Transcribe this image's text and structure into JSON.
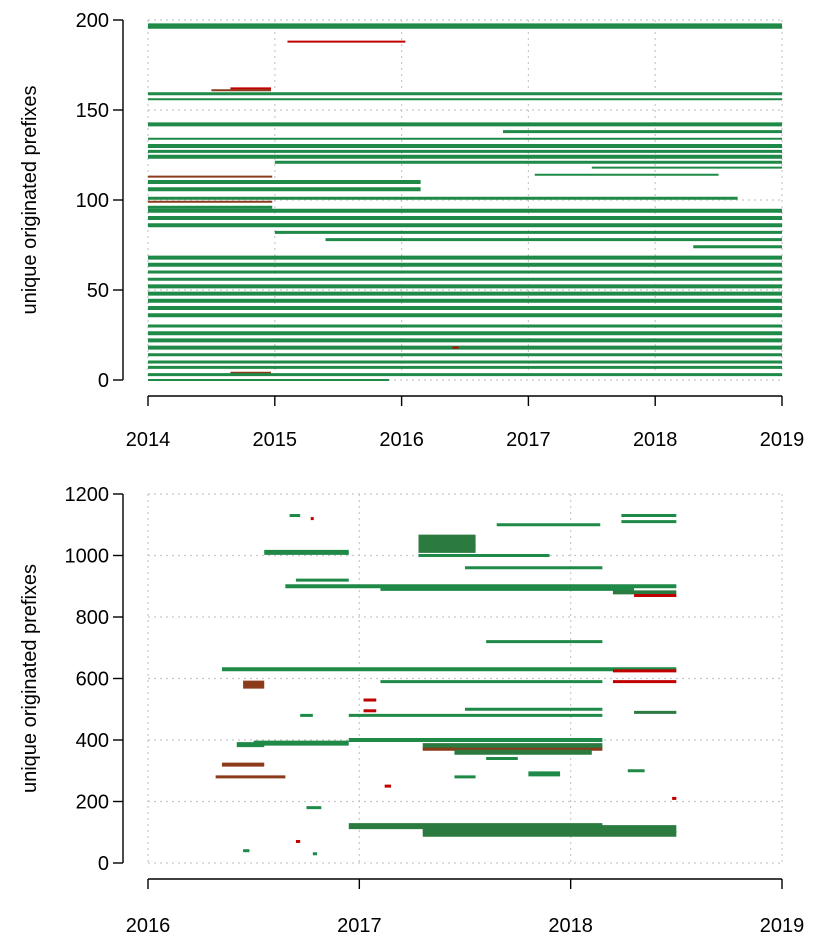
{
  "colors": {
    "green": "#1f8a47",
    "dark_green": "#2b7a3f",
    "red": "#c00000",
    "brown": "#8b3a1a"
  },
  "chart_data": [
    {
      "type": "timeline-segments",
      "ylabel": "unique originated prefixes",
      "xlabel": "",
      "xlim": [
        2014,
        2019
      ],
      "ylim": [
        0,
        200
      ],
      "xticks": [
        "2014",
        "2015",
        "2016",
        "2017",
        "2018",
        "2019"
      ],
      "yticks": [
        "0",
        "50",
        "100",
        "150",
        "200"
      ],
      "grid": true,
      "segments": [
        {
          "y": 197,
          "x0": 2014.0,
          "x1": 2019.0,
          "color": "green",
          "thick": 4
        },
        {
          "y": 196,
          "x0": 2014.0,
          "x1": 2019.0,
          "color": "green",
          "thick": 3
        },
        {
          "y": 188,
          "x0": 2015.1,
          "x1": 2016.03,
          "color": "red",
          "thick": 2
        },
        {
          "y": 161,
          "x0": 2014.5,
          "x1": 2014.97,
          "color": "brown",
          "thick": 2
        },
        {
          "y": 162,
          "x0": 2014.65,
          "x1": 2014.97,
          "color": "red",
          "thick": 2
        },
        {
          "y": 159,
          "x0": 2014.0,
          "x1": 2019.0,
          "color": "green",
          "thick": 3
        },
        {
          "y": 156,
          "x0": 2014.0,
          "x1": 2019.0,
          "color": "green",
          "thick": 2
        },
        {
          "y": 142,
          "x0": 2014.0,
          "x1": 2019.0,
          "color": "green",
          "thick": 4
        },
        {
          "y": 138,
          "x0": 2016.8,
          "x1": 2019.0,
          "color": "green",
          "thick": 3
        },
        {
          "y": 134,
          "x0": 2014.0,
          "x1": 2019.0,
          "color": "green",
          "thick": 2
        },
        {
          "y": 130,
          "x0": 2014.0,
          "x1": 2019.0,
          "color": "green",
          "thick": 4
        },
        {
          "y": 127,
          "x0": 2014.0,
          "x1": 2019.0,
          "color": "green",
          "thick": 3
        },
        {
          "y": 124,
          "x0": 2014.0,
          "x1": 2019.0,
          "color": "green",
          "thick": 4
        },
        {
          "y": 121,
          "x0": 2015.0,
          "x1": 2019.0,
          "color": "green",
          "thick": 3
        },
        {
          "y": 118,
          "x0": 2017.5,
          "x1": 2019.0,
          "color": "green",
          "thick": 2
        },
        {
          "y": 114,
          "x0": 2017.05,
          "x1": 2018.5,
          "color": "green",
          "thick": 2
        },
        {
          "y": 113,
          "x0": 2014.0,
          "x1": 2014.98,
          "color": "brown",
          "thick": 2
        },
        {
          "y": 110,
          "x0": 2014.0,
          "x1": 2016.15,
          "color": "green",
          "thick": 4
        },
        {
          "y": 106,
          "x0": 2014.0,
          "x1": 2016.15,
          "color": "green",
          "thick": 4
        },
        {
          "y": 101,
          "x0": 2014.0,
          "x1": 2018.65,
          "color": "green",
          "thick": 3
        },
        {
          "y": 99,
          "x0": 2014.0,
          "x1": 2014.98,
          "color": "brown",
          "thick": 2
        },
        {
          "y": 96,
          "x0": 2014.0,
          "x1": 2014.98,
          "color": "green",
          "thick": 3
        },
        {
          "y": 94,
          "x0": 2014.0,
          "x1": 2019.0,
          "color": "green",
          "thick": 4
        },
        {
          "y": 90,
          "x0": 2014.0,
          "x1": 2019.0,
          "color": "green",
          "thick": 4
        },
        {
          "y": 86,
          "x0": 2014.0,
          "x1": 2019.0,
          "color": "green",
          "thick": 4
        },
        {
          "y": 82,
          "x0": 2015.0,
          "x1": 2019.0,
          "color": "green",
          "thick": 3
        },
        {
          "y": 78,
          "x0": 2015.4,
          "x1": 2019.0,
          "color": "green",
          "thick": 3
        },
        {
          "y": 74,
          "x0": 2018.3,
          "x1": 2019.0,
          "color": "green",
          "thick": 3
        },
        {
          "y": 68,
          "x0": 2014.0,
          "x1": 2019.0,
          "color": "green",
          "thick": 4
        },
        {
          "y": 64,
          "x0": 2014.0,
          "x1": 2019.0,
          "color": "green",
          "thick": 4
        },
        {
          "y": 60,
          "x0": 2014.0,
          "x1": 2019.0,
          "color": "green",
          "thick": 3
        },
        {
          "y": 56,
          "x0": 2014.0,
          "x1": 2019.0,
          "color": "green",
          "thick": 3
        },
        {
          "y": 52,
          "x0": 2014.0,
          "x1": 2019.0,
          "color": "green",
          "thick": 4
        },
        {
          "y": 48,
          "x0": 2014.0,
          "x1": 2019.0,
          "color": "green",
          "thick": 4
        },
        {
          "y": 44,
          "x0": 2014.0,
          "x1": 2019.0,
          "color": "green",
          "thick": 4
        },
        {
          "y": 40,
          "x0": 2014.0,
          "x1": 2019.0,
          "color": "green",
          "thick": 4
        },
        {
          "y": 36,
          "x0": 2014.0,
          "x1": 2019.0,
          "color": "green",
          "thick": 4
        },
        {
          "y": 30,
          "x0": 2014.0,
          "x1": 2019.0,
          "color": "green",
          "thick": 3
        },
        {
          "y": 26,
          "x0": 2014.0,
          "x1": 2019.0,
          "color": "green",
          "thick": 4
        },
        {
          "y": 22,
          "x0": 2014.0,
          "x1": 2019.0,
          "color": "green",
          "thick": 4
        },
        {
          "y": 18,
          "x0": 2014.0,
          "x1": 2019.0,
          "color": "green",
          "thick": 4
        },
        {
          "y": 18,
          "x0": 2016.4,
          "x1": 2016.45,
          "color": "red",
          "thick": 2
        },
        {
          "y": 14,
          "x0": 2014.0,
          "x1": 2019.0,
          "color": "green",
          "thick": 3
        },
        {
          "y": 10,
          "x0": 2014.0,
          "x1": 2019.0,
          "color": "green",
          "thick": 3
        },
        {
          "y": 7,
          "x0": 2014.0,
          "x1": 2019.0,
          "color": "green",
          "thick": 3
        },
        {
          "y": 4,
          "x0": 2014.65,
          "x1": 2014.97,
          "color": "brown",
          "thick": 2
        },
        {
          "y": 3,
          "x0": 2014.0,
          "x1": 2019.0,
          "color": "green",
          "thick": 3
        },
        {
          "y": 0,
          "x0": 2014.0,
          "x1": 2015.9,
          "color": "green",
          "thick": 2
        }
      ]
    },
    {
      "type": "timeline-segments",
      "ylabel": "unique originated prefixes",
      "xlabel": "",
      "xlim": [
        2016,
        2019
      ],
      "ylim": [
        0,
        1200
      ],
      "xticks": [
        "2016",
        "2017",
        "2018",
        "2019"
      ],
      "yticks": [
        "0",
        "200",
        "400",
        "600",
        "800",
        "1000",
        "1200"
      ],
      "grid": true,
      "segments": [
        {
          "y": 1130,
          "x0": 2016.67,
          "x1": 2016.72,
          "color": "green",
          "thick": 3
        },
        {
          "y": 1120,
          "x0": 2016.77,
          "x1": 2016.78,
          "color": "red",
          "thick": 3
        },
        {
          "y": 1130,
          "x0": 2018.24,
          "x1": 2018.5,
          "color": "green",
          "thick": 3
        },
        {
          "y": 1110,
          "x0": 2018.24,
          "x1": 2018.5,
          "color": "green",
          "thick": 3
        },
        {
          "y": 1100,
          "x0": 2017.65,
          "x1": 2018.14,
          "color": "green",
          "thick": 3
        },
        {
          "y": 1045,
          "x0": 2017.28,
          "x1": 2017.55,
          "color": "dark_green",
          "thick": 14
        },
        {
          "y": 1025,
          "x0": 2017.28,
          "x1": 2017.55,
          "color": "dark_green",
          "thick": 10
        },
        {
          "y": 1000,
          "x0": 2017.28,
          "x1": 2017.9,
          "color": "green",
          "thick": 3
        },
        {
          "y": 1010,
          "x0": 2016.55,
          "x1": 2016.95,
          "color": "green",
          "thick": 5
        },
        {
          "y": 960,
          "x0": 2017.5,
          "x1": 2018.15,
          "color": "green",
          "thick": 3
        },
        {
          "y": 920,
          "x0": 2016.7,
          "x1": 2016.95,
          "color": "green",
          "thick": 3
        },
        {
          "y": 900,
          "x0": 2016.65,
          "x1": 2018.5,
          "color": "green",
          "thick": 4
        },
        {
          "y": 890,
          "x0": 2017.1,
          "x1": 2018.3,
          "color": "green",
          "thick": 3
        },
        {
          "y": 880,
          "x0": 2018.2,
          "x1": 2018.5,
          "color": "dark_green",
          "thick": 4
        },
        {
          "y": 870,
          "x0": 2018.3,
          "x1": 2018.5,
          "color": "red",
          "thick": 3
        },
        {
          "y": 720,
          "x0": 2017.6,
          "x1": 2018.15,
          "color": "green",
          "thick": 3
        },
        {
          "y": 630,
          "x0": 2016.35,
          "x1": 2018.5,
          "color": "green",
          "thick": 4
        },
        {
          "y": 625,
          "x0": 2018.2,
          "x1": 2018.5,
          "color": "red",
          "thick": 3
        },
        {
          "y": 590,
          "x0": 2017.1,
          "x1": 2018.15,
          "color": "green",
          "thick": 3
        },
        {
          "y": 590,
          "x0": 2018.2,
          "x1": 2018.5,
          "color": "red",
          "thick": 3
        },
        {
          "y": 580,
          "x0": 2016.45,
          "x1": 2016.55,
          "color": "brown",
          "thick": 8
        },
        {
          "y": 530,
          "x0": 2017.02,
          "x1": 2017.08,
          "color": "red",
          "thick": 3
        },
        {
          "y": 495,
          "x0": 2017.02,
          "x1": 2017.08,
          "color": "red",
          "thick": 3
        },
        {
          "y": 500,
          "x0": 2017.5,
          "x1": 2018.15,
          "color": "green",
          "thick": 3
        },
        {
          "y": 490,
          "x0": 2018.3,
          "x1": 2018.5,
          "color": "dark_green",
          "thick": 3
        },
        {
          "y": 480,
          "x0": 2016.95,
          "x1": 2018.15,
          "color": "green",
          "thick": 3
        },
        {
          "y": 480,
          "x0": 2016.72,
          "x1": 2016.78,
          "color": "green",
          "thick": 3
        },
        {
          "y": 400,
          "x0": 2016.95,
          "x1": 2018.15,
          "color": "green",
          "thick": 4
        },
        {
          "y": 390,
          "x0": 2016.5,
          "x1": 2016.95,
          "color": "green",
          "thick": 5
        },
        {
          "y": 385,
          "x0": 2016.42,
          "x1": 2016.55,
          "color": "green",
          "thick": 5
        },
        {
          "y": 380,
          "x0": 2017.3,
          "x1": 2018.15,
          "color": "dark_green",
          "thick": 6
        },
        {
          "y": 370,
          "x0": 2017.3,
          "x1": 2018.15,
          "color": "brown",
          "thick": 3
        },
        {
          "y": 360,
          "x0": 2017.45,
          "x1": 2018.1,
          "color": "dark_green",
          "thick": 5
        },
        {
          "y": 340,
          "x0": 2017.6,
          "x1": 2017.75,
          "color": "green",
          "thick": 3
        },
        {
          "y": 320,
          "x0": 2016.35,
          "x1": 2016.55,
          "color": "brown",
          "thick": 4
        },
        {
          "y": 300,
          "x0": 2018.27,
          "x1": 2018.35,
          "color": "green",
          "thick": 3
        },
        {
          "y": 290,
          "x0": 2017.8,
          "x1": 2017.95,
          "color": "green",
          "thick": 5
        },
        {
          "y": 280,
          "x0": 2016.32,
          "x1": 2016.65,
          "color": "brown",
          "thick": 3
        },
        {
          "y": 280,
          "x0": 2017.45,
          "x1": 2017.55,
          "color": "green",
          "thick": 3
        },
        {
          "y": 250,
          "x0": 2017.12,
          "x1": 2017.15,
          "color": "red",
          "thick": 3
        },
        {
          "y": 210,
          "x0": 2018.48,
          "x1": 2018.5,
          "color": "red",
          "thick": 3
        },
        {
          "y": 180,
          "x0": 2016.75,
          "x1": 2016.82,
          "color": "green",
          "thick": 3
        },
        {
          "y": 120,
          "x0": 2016.95,
          "x1": 2018.15,
          "color": "dark_green",
          "thick": 6
        },
        {
          "y": 110,
          "x0": 2017.3,
          "x1": 2018.5,
          "color": "dark_green",
          "thick": 8
        },
        {
          "y": 95,
          "x0": 2017.3,
          "x1": 2018.5,
          "color": "dark_green",
          "thick": 6
        },
        {
          "y": 70,
          "x0": 2016.7,
          "x1": 2016.72,
          "color": "red",
          "thick": 3
        },
        {
          "y": 40,
          "x0": 2016.45,
          "x1": 2016.48,
          "color": "green",
          "thick": 3
        },
        {
          "y": 30,
          "x0": 2016.78,
          "x1": 2016.8,
          "color": "green",
          "thick": 3
        }
      ]
    }
  ]
}
